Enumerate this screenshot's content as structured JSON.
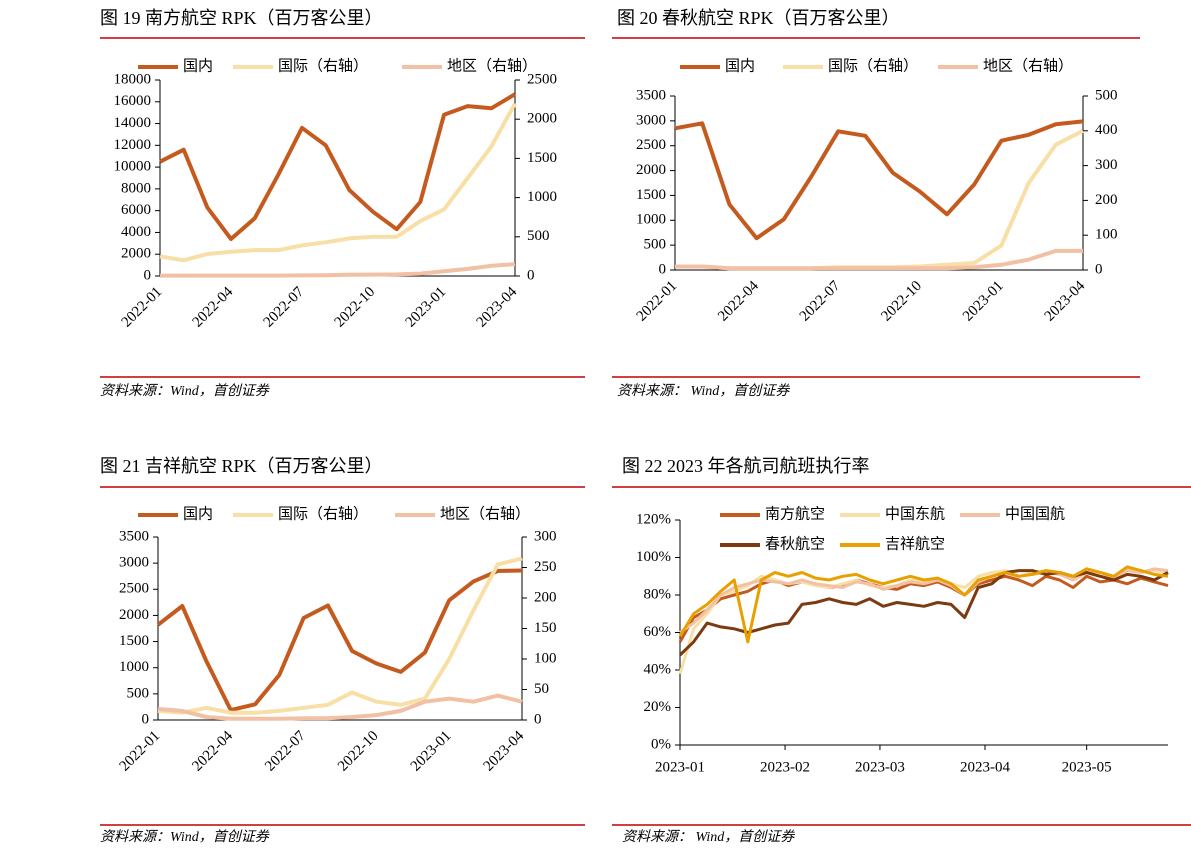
{
  "chart_data": [
    {
      "type": "line",
      "title": "图 19 南方航空 RPK（百万客公里）",
      "source": "资料来源：Wind，首创证券",
      "categories": [
        "2022-01",
        null,
        null,
        "2022-04",
        null,
        null,
        "2022-07",
        null,
        null,
        "2022-10",
        null,
        null,
        "2023-01",
        null,
        null,
        "2023-04"
      ],
      "ylim": [
        0,
        18000
      ],
      "yticks": [
        0,
        2000,
        4000,
        6000,
        8000,
        10000,
        12000,
        14000,
        16000,
        18000
      ],
      "y2lim": [
        0,
        2500
      ],
      "y2ticks": [
        0,
        500,
        1000,
        1500,
        2000,
        2500
      ],
      "series": [
        {
          "name": "国内",
          "color": "#c55a1e",
          "values": [
            10500,
            11600,
            6300,
            3400,
            5300,
            9300,
            13600,
            12000,
            7900,
            5900,
            4300,
            6800,
            14800,
            15600,
            15400,
            16700
          ]
        },
        {
          "name": "国际（右轴）",
          "color": "#f7dfa5",
          "axis": "y2",
          "values": [
            250,
            200,
            280,
            310,
            330,
            330,
            390,
            430,
            480,
            500,
            500,
            700,
            850,
            1250,
            1650,
            2200
          ]
        },
        {
          "name": "地区（右轴）",
          "color": "#f2c0a4",
          "axis": "y2",
          "values": [
            5,
            5,
            5,
            5,
            5,
            5,
            8,
            10,
            15,
            18,
            20,
            30,
            60,
            90,
            130,
            150
          ]
        }
      ]
    },
    {
      "type": "line",
      "title": "图 20 春秋航空 RPK（百万客公里）",
      "source": "资料来源： Wind，首创证券",
      "categories": [
        "2022-01",
        null,
        null,
        "2022-04",
        null,
        null,
        "2022-07",
        null,
        null,
        "2022-10",
        null,
        null,
        "2023-01",
        null,
        null,
        "2023-04"
      ],
      "ylim": [
        0,
        3500
      ],
      "yticks": [
        0,
        500,
        1000,
        1500,
        2000,
        2500,
        3000,
        3500
      ],
      "y2lim": [
        0,
        500
      ],
      "y2ticks": [
        0,
        100,
        200,
        300,
        400,
        500
      ],
      "series": [
        {
          "name": "国内",
          "color": "#c55a1e",
          "values": [
            2850,
            2950,
            1320,
            640,
            1020,
            1870,
            2790,
            2700,
            1960,
            1580,
            1120,
            1720,
            2600,
            2720,
            2930,
            2990
          ]
        },
        {
          "name": "国际（右轴）",
          "color": "#f7dfa5",
          "axis": "y2",
          "values": [
            10,
            10,
            5,
            5,
            5,
            5,
            8,
            8,
            8,
            10,
            15,
            20,
            70,
            250,
            360,
            400
          ]
        },
        {
          "name": "地区（右轴）",
          "color": "#f2c0a4",
          "axis": "y2",
          "values": [
            10,
            10,
            5,
            5,
            5,
            5,
            5,
            5,
            5,
            5,
            5,
            8,
            15,
            30,
            55,
            55
          ]
        }
      ]
    },
    {
      "type": "line",
      "title": "图 21 吉祥航空 RPK（百万客公里）",
      "source": "资料来源：Wind，首创证券",
      "categories": [
        "2022-01",
        null,
        null,
        "2022-04",
        null,
        null,
        "2022-07",
        null,
        null,
        "2022-10",
        null,
        null,
        "2023-01",
        null,
        null,
        "2023-04"
      ],
      "ylim": [
        0,
        3500
      ],
      "yticks": [
        0,
        500,
        1000,
        1500,
        2000,
        2500,
        3000,
        3500
      ],
      "y2lim": [
        0,
        300
      ],
      "y2ticks": [
        0,
        50,
        100,
        150,
        200,
        250,
        300
      ],
      "series": [
        {
          "name": "国内",
          "color": "#c55a1e",
          "values": [
            1820,
            2180,
            1120,
            190,
            300,
            860,
            1950,
            2190,
            1320,
            1080,
            920,
            1290,
            2290,
            2650,
            2850,
            2860
          ]
        },
        {
          "name": "国际（右轴）",
          "color": "#f7dfa5",
          "axis": "y2",
          "values": [
            15,
            12,
            20,
            12,
            12,
            15,
            20,
            25,
            45,
            30,
            25,
            35,
            100,
            180,
            255,
            265
          ]
        },
        {
          "name": "地区（右轴）",
          "color": "#f2c0a4",
          "axis": "y2",
          "values": [
            18,
            15,
            5,
            2,
            2,
            2,
            3,
            3,
            5,
            8,
            15,
            30,
            35,
            30,
            40,
            30
          ]
        }
      ]
    },
    {
      "type": "line",
      "title": "图 22 2023 年各航司航班执行率",
      "source": "资料来源： Wind，首创证券",
      "x": [
        0,
        4,
        8,
        12,
        16,
        20,
        24,
        28,
        32,
        36,
        40,
        44,
        48,
        52,
        56,
        60,
        64,
        68,
        72,
        76,
        80,
        84,
        88,
        92,
        96,
        100,
        104,
        108,
        112,
        116,
        120,
        124,
        128,
        132,
        136,
        140,
        144
      ],
      "xlim": [
        0,
        144
      ],
      "xticks": [
        {
          "value": 0,
          "label": "2023-01"
        },
        {
          "value": 31,
          "label": "2023-02"
        },
        {
          "value": 59,
          "label": "2023-03"
        },
        {
          "value": 90,
          "label": "2023-04"
        },
        {
          "value": 120,
          "label": "2023-05"
        }
      ],
      "ylim": [
        0,
        120
      ],
      "yticks": [
        {
          "value": 0,
          "label": "0%"
        },
        {
          "value": 20,
          "label": "20%"
        },
        {
          "value": 40,
          "label": "40%"
        },
        {
          "value": 60,
          "label": "60%"
        },
        {
          "value": 80,
          "label": "80%"
        },
        {
          "value": 100,
          "label": "100%"
        },
        {
          "value": 120,
          "label": "120%"
        }
      ],
      "series": [
        {
          "name": "南方航空",
          "color": "#c55a1e",
          "values": [
            55,
            68,
            72,
            78,
            80,
            82,
            86,
            88,
            85,
            87,
            86,
            84,
            85,
            88,
            86,
            84,
            83,
            86,
            85,
            87,
            84,
            80,
            86,
            88,
            90,
            88,
            85,
            90,
            88,
            84,
            90,
            87,
            88,
            86,
            89,
            87,
            85
          ]
        },
        {
          "name": "中国东航",
          "color": "#f7dfa5",
          "values": [
            38,
            62,
            70,
            80,
            82,
            85,
            90,
            88,
            86,
            87,
            85,
            84,
            86,
            88,
            85,
            84,
            85,
            88,
            87,
            89,
            86,
            84,
            90,
            92,
            93,
            90,
            92,
            93,
            92,
            88,
            93,
            92,
            90,
            94,
            92,
            93,
            92
          ]
        },
        {
          "name": "中国国航",
          "color": "#f2c0a4",
          "values": [
            60,
            65,
            72,
            80,
            84,
            86,
            88,
            87,
            86,
            88,
            86,
            85,
            84,
            87,
            86,
            83,
            85,
            87,
            86,
            88,
            85,
            80,
            87,
            90,
            92,
            90,
            91,
            92,
            91,
            88,
            92,
            90,
            89,
            93,
            92,
            94,
            93
          ]
        },
        {
          "name": "春秋航空",
          "color": "#7b3a10",
          "values": [
            48,
            55,
            65,
            63,
            62,
            60,
            62,
            64,
            65,
            75,
            76,
            78,
            76,
            75,
            78,
            74,
            76,
            75,
            74,
            76,
            75,
            68,
            84,
            86,
            92,
            93,
            93,
            91,
            92,
            90,
            92,
            90,
            88,
            91,
            90,
            88,
            92
          ]
        },
        {
          "name": "吉祥航空",
          "color": "#e8a000",
          "values": [
            58,
            70,
            75,
            82,
            88,
            55,
            88,
            92,
            90,
            92,
            89,
            88,
            90,
            91,
            88,
            86,
            88,
            90,
            88,
            89,
            86,
            80,
            88,
            90,
            92,
            90,
            91,
            93,
            92,
            90,
            94,
            92,
            90,
            95,
            93,
            91,
            90
          ]
        }
      ]
    }
  ]
}
